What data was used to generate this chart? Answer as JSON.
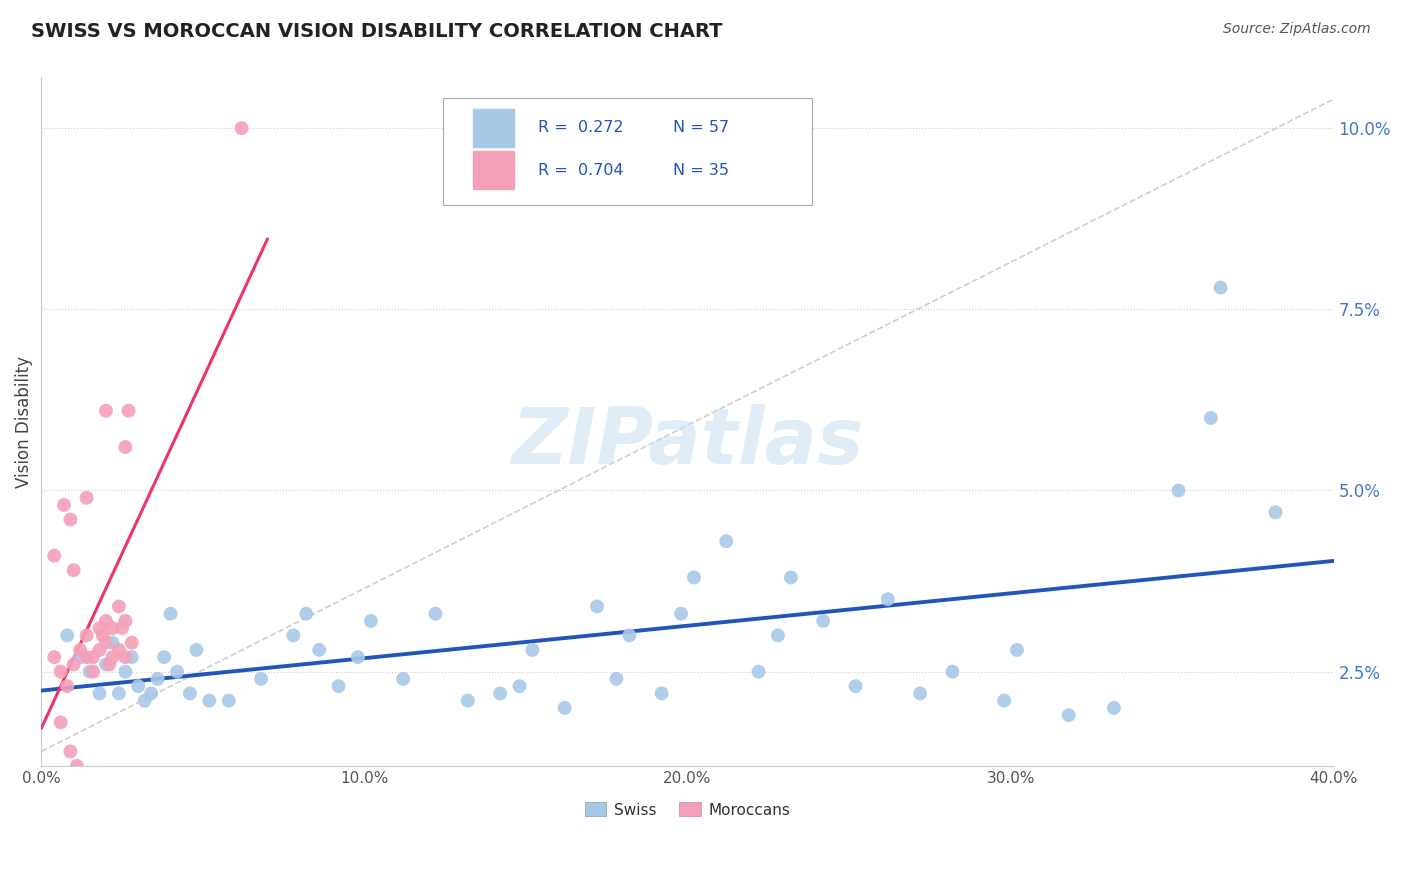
{
  "title": "SWISS VS MOROCCAN VISION DISABILITY CORRELATION CHART",
  "source": "Source: ZipAtlas.com",
  "ylabel": "Vision Disability",
  "xlim": [
    0.0,
    0.4
  ],
  "ylim": [
    0.012,
    0.107
  ],
  "swiss_R": 0.272,
  "swiss_N": 57,
  "moroccan_R": 0.704,
  "moroccan_N": 35,
  "swiss_color": "#a8c8e8",
  "moroccan_color": "#f4a0b8",
  "swiss_line_color": "#2255bb",
  "moroccan_line_color": "#ee3366",
  "dashed_line_color": "#bbbbbb",
  "background_color": "#ffffff",
  "grid_color": "#cccccc",
  "title_color": "#222222",
  "source_color": "#555555",
  "tick_color_y": "#4477cc",
  "tick_color_x": "#555555",
  "swiss_scatter": [
    [
      0.008,
      0.03
    ],
    [
      0.012,
      0.027
    ],
    [
      0.015,
      0.025
    ],
    [
      0.018,
      0.022
    ],
    [
      0.02,
      0.026
    ],
    [
      0.022,
      0.029
    ],
    [
      0.024,
      0.022
    ],
    [
      0.026,
      0.025
    ],
    [
      0.028,
      0.027
    ],
    [
      0.03,
      0.023
    ],
    [
      0.032,
      0.021
    ],
    [
      0.034,
      0.022
    ],
    [
      0.036,
      0.024
    ],
    [
      0.038,
      0.027
    ],
    [
      0.04,
      0.033
    ],
    [
      0.042,
      0.025
    ],
    [
      0.046,
      0.022
    ],
    [
      0.048,
      0.028
    ],
    [
      0.052,
      0.021
    ],
    [
      0.058,
      0.021
    ],
    [
      0.068,
      0.024
    ],
    [
      0.078,
      0.03
    ],
    [
      0.082,
      0.033
    ],
    [
      0.086,
      0.028
    ],
    [
      0.092,
      0.023
    ],
    [
      0.098,
      0.027
    ],
    [
      0.102,
      0.032
    ],
    [
      0.112,
      0.024
    ],
    [
      0.122,
      0.033
    ],
    [
      0.132,
      0.021
    ],
    [
      0.142,
      0.022
    ],
    [
      0.148,
      0.023
    ],
    [
      0.152,
      0.028
    ],
    [
      0.162,
      0.02
    ],
    [
      0.172,
      0.034
    ],
    [
      0.178,
      0.024
    ],
    [
      0.182,
      0.03
    ],
    [
      0.192,
      0.022
    ],
    [
      0.198,
      0.033
    ],
    [
      0.202,
      0.038
    ],
    [
      0.212,
      0.043
    ],
    [
      0.222,
      0.025
    ],
    [
      0.228,
      0.03
    ],
    [
      0.232,
      0.038
    ],
    [
      0.242,
      0.032
    ],
    [
      0.252,
      0.023
    ],
    [
      0.262,
      0.035
    ],
    [
      0.272,
      0.022
    ],
    [
      0.282,
      0.025
    ],
    [
      0.298,
      0.021
    ],
    [
      0.302,
      0.028
    ],
    [
      0.318,
      0.019
    ],
    [
      0.332,
      0.02
    ],
    [
      0.352,
      0.05
    ],
    [
      0.362,
      0.06
    ],
    [
      0.365,
      0.078
    ],
    [
      0.382,
      0.047
    ]
  ],
  "moroccan_scatter": [
    [
      0.004,
      0.027
    ],
    [
      0.006,
      0.025
    ],
    [
      0.008,
      0.023
    ],
    [
      0.01,
      0.026
    ],
    [
      0.012,
      0.028
    ],
    [
      0.014,
      0.027
    ],
    [
      0.014,
      0.03
    ],
    [
      0.016,
      0.027
    ],
    [
      0.016,
      0.025
    ],
    [
      0.018,
      0.031
    ],
    [
      0.018,
      0.028
    ],
    [
      0.019,
      0.03
    ],
    [
      0.02,
      0.029
    ],
    [
      0.02,
      0.032
    ],
    [
      0.021,
      0.026
    ],
    [
      0.022,
      0.031
    ],
    [
      0.022,
      0.027
    ],
    [
      0.024,
      0.028
    ],
    [
      0.024,
      0.034
    ],
    [
      0.025,
      0.031
    ],
    [
      0.026,
      0.027
    ],
    [
      0.026,
      0.032
    ],
    [
      0.028,
      0.029
    ],
    [
      0.014,
      0.049
    ],
    [
      0.007,
      0.048
    ],
    [
      0.009,
      0.046
    ],
    [
      0.026,
      0.056
    ],
    [
      0.027,
      0.061
    ],
    [
      0.004,
      0.041
    ],
    [
      0.01,
      0.039
    ],
    [
      0.006,
      0.018
    ],
    [
      0.009,
      0.014
    ],
    [
      0.011,
      0.012
    ],
    [
      0.02,
      0.061
    ],
    [
      0.062,
      0.1
    ]
  ],
  "watermark_text": "ZIPatlas",
  "watermark_color": "#c8dff0",
  "xtick_vals": [
    0.0,
    0.1,
    0.2,
    0.3,
    0.4
  ],
  "xtick_labels": [
    "0.0%",
    "10.0%",
    "20.0%",
    "30.0%",
    "40.0%"
  ],
  "ytick_vals": [
    0.025,
    0.05,
    0.075,
    0.1
  ],
  "ytick_labels": [
    "2.5%",
    "5.0%",
    "7.5%",
    "10.0%"
  ]
}
